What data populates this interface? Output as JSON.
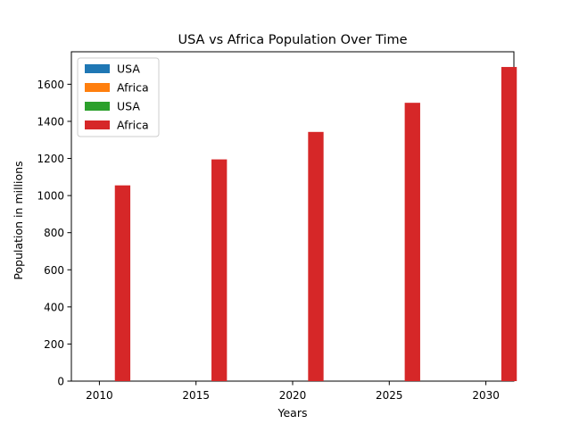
{
  "chart_data": {
    "type": "bar",
    "title": "USA vs Africa Population Over Time",
    "xlabel": "Years",
    "ylabel": "Population in millions",
    "categories": [
      "2010",
      "2015",
      "2020",
      "2025",
      "2030"
    ],
    "x": [
      2010,
      2015,
      2020,
      2025,
      2030
    ],
    "xlim": [
      2008.55,
      2031.45
    ],
    "ylim": [
      0,
      1775
    ],
    "yticks": [
      0,
      200,
      400,
      600,
      800,
      1000,
      1200,
      1400,
      1600
    ],
    "grid": false,
    "legend_position": "upper-left",
    "series": [
      {
        "name": "USA",
        "color": "#1f77b4",
        "values": [
          0,
          0,
          0,
          0,
          0
        ]
      },
      {
        "name": "Africa",
        "color": "#ff7f0e",
        "values": [
          0,
          0,
          0,
          0,
          0
        ]
      },
      {
        "name": "USA",
        "color": "#2ca02c",
        "values": [
          0,
          0,
          0,
          0,
          0
        ]
      },
      {
        "name": "Africa",
        "color": "#d62728",
        "values": [
          1055,
          1195,
          1343,
          1500,
          1693
        ]
      }
    ]
  }
}
